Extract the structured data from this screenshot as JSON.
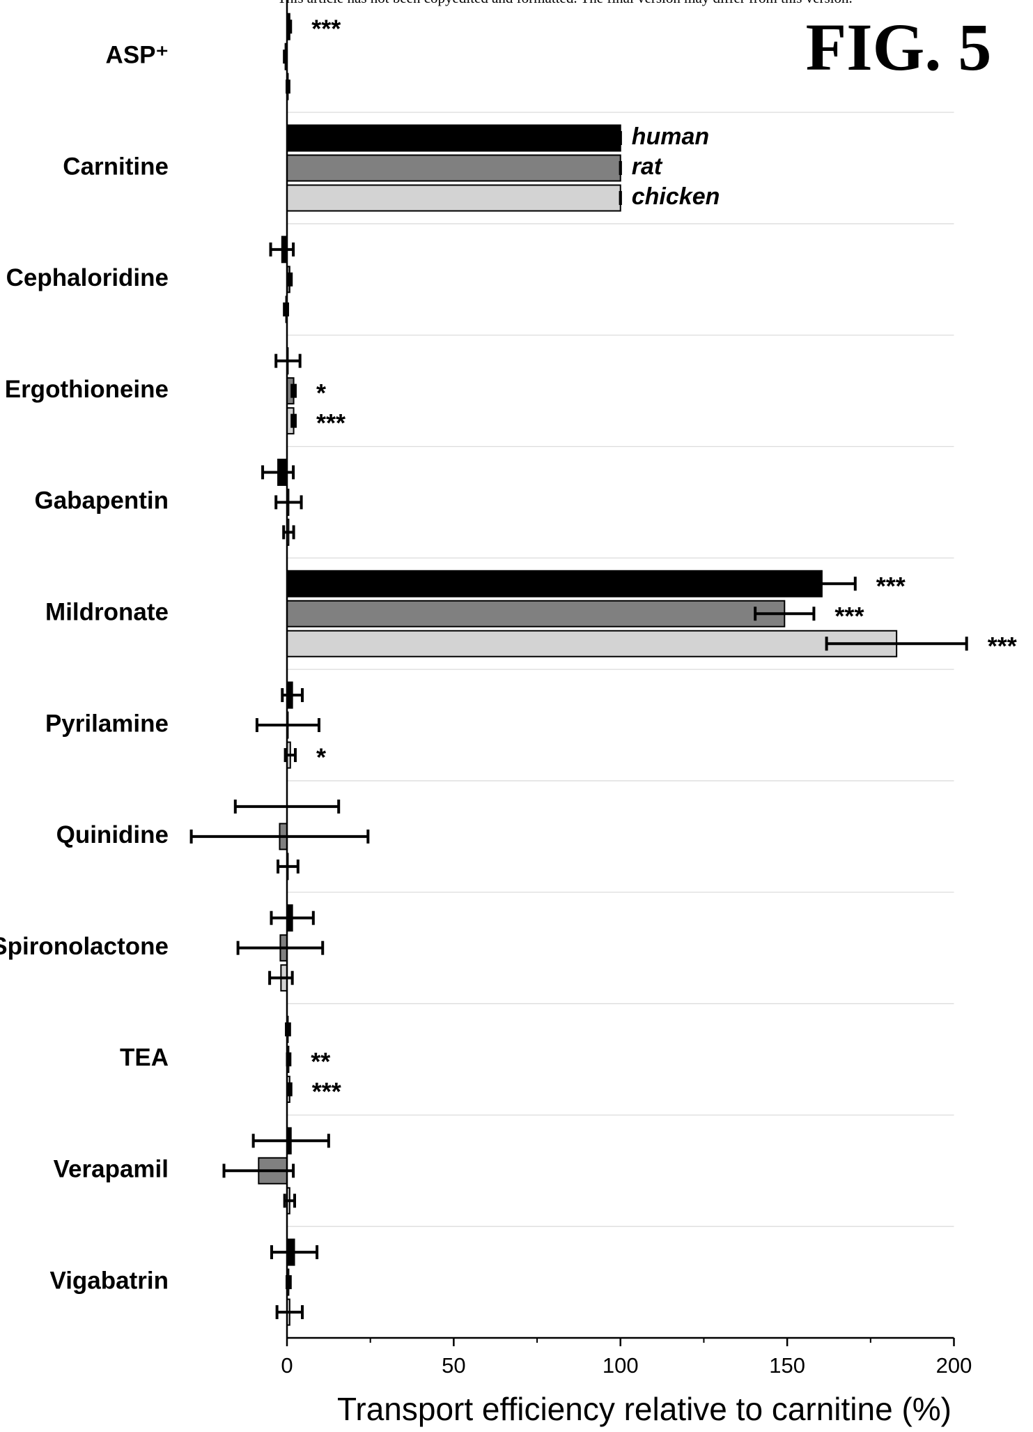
{
  "chart_data": {
    "type": "bar",
    "orientation": "horizontal",
    "header_note": "This article has not been copyedited and formatted. The final version may differ from this version.",
    "figure_label": "FIG. 5",
    "categories": [
      "ASP⁺",
      "Carnitine",
      "Cephaloridine",
      "Ergothioneine",
      "Gabapentin",
      "Mildronate",
      "Pyrilamine",
      "Quinidine",
      "Spironolactone",
      "TEA",
      "Verapamil",
      "Vigabatrin"
    ],
    "series": [
      {
        "name": "human",
        "color": "#000000",
        "values": [
          0.8,
          100,
          -1.5,
          0.3,
          -2.7,
          160.4,
          1.6,
          0,
          1.6,
          0.3,
          1.2,
          2.2
        ],
        "errors": [
          0.3,
          0,
          3.4,
          3.6,
          4.6,
          10,
          3,
          15.5,
          6.3,
          0.5,
          11.3,
          6.8
        ],
        "annotations": [
          "***",
          null,
          null,
          null,
          null,
          "***",
          null,
          null,
          null,
          null,
          null,
          null
        ]
      },
      {
        "name": "rat",
        "color": "#808080",
        "values": [
          -0.5,
          100,
          0.8,
          2,
          0.5,
          149.2,
          0.3,
          -2.2,
          -2,
          0.5,
          -8.5,
          0.5
        ],
        "errors": [
          0.3,
          0,
          0.5,
          0.5,
          3.8,
          8.8,
          9.3,
          26.5,
          12.7,
          0.4,
          10.4,
          0.5
        ],
        "annotations": [
          null,
          null,
          null,
          "*",
          null,
          "***",
          null,
          null,
          null,
          "**",
          null,
          null
        ]
      },
      {
        "name": "chicken",
        "color": "#d3d3d3",
        "values": [
          0.3,
          100,
          -0.3,
          2,
          0.5,
          182.8,
          1,
          0.3,
          -1.8,
          0.8,
          0.8,
          0.8
        ],
        "errors": [
          0.3,
          0,
          0.5,
          0.5,
          1.5,
          21,
          1.5,
          3,
          3.4,
          0.4,
          1.5,
          3.8
        ],
        "annotations": [
          null,
          null,
          null,
          "***",
          null,
          "***",
          "*",
          null,
          null,
          "***",
          null,
          null
        ]
      }
    ],
    "xlabel": "Transport efficiency relative to carnitine (%)",
    "xlim": [
      0,
      200
    ],
    "xticks": [
      0,
      50,
      100,
      150,
      200
    ],
    "xminorticks": [
      25,
      75,
      125,
      175
    ],
    "legend": "inline"
  }
}
